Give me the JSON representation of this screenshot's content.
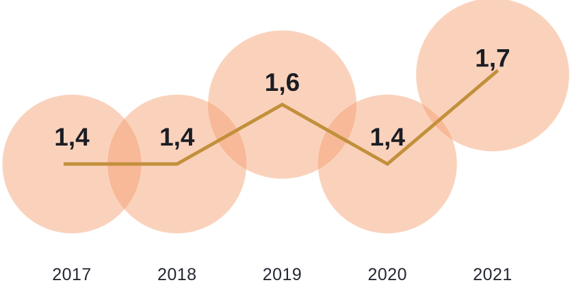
{
  "chart_data": {
    "type": "line",
    "subtype": "line-with-area-proportional-bubbles",
    "title": "",
    "xlabel": "",
    "ylabel": "",
    "categories": [
      "2017",
      "2018",
      "2019",
      "2020",
      "2021"
    ],
    "values": [
      1.4,
      1.4,
      1.6,
      1.4,
      1.7
    ],
    "value_labels": [
      "1,4",
      "1,4",
      "1,6",
      "1,4",
      "1,7"
    ],
    "decimal_separator": ",",
    "series": [
      {
        "name": "value-per-year",
        "values": [
          1.4,
          1.4,
          1.6,
          1.4,
          1.7
        ]
      }
    ],
    "ylim": [
      1.3,
      1.8
    ],
    "grid": false,
    "axes_visible": false,
    "legend_position": "none",
    "bubble_area_proportional_to_value": true
  },
  "colors": {
    "background": "#FFFFFF",
    "bubble_fill": "#F49B6A",
    "bubble_opacity": "0.45",
    "trend_line": "#C2903B",
    "value_label": "#1B1D24",
    "year_label": "#242832"
  }
}
